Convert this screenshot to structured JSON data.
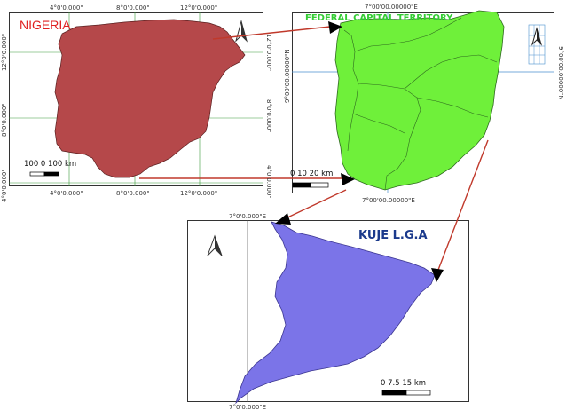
{
  "nigeria_panel": {
    "title": "NIGERIA",
    "top_labels": [
      "4°0'0.000\"",
      "8°0'0.000\"",
      "12°0'0.000\""
    ],
    "bottom_labels": [
      "4°0'0.000\"",
      "8°0'0.000\"",
      "12°0'0.000\""
    ],
    "left_labels": [
      "12°0'0.000\"",
      "8°0'0.000\"",
      "4°0'0.000\""
    ],
    "right_labels": [
      "12°0'0.000\"",
      "8°0'0.000\"",
      "4°0'0.000\""
    ],
    "scale_label": "100  0   100 km",
    "fill_color": "#b5484a"
  },
  "fct_panel": {
    "title": "FEDERAL CAPITAL TERRITORY",
    "top_label": "7°00'00.00000\"E",
    "bottom_label": "7°00'00.00000\"E",
    "left_label": "9°00'00.00000\"N",
    "right_label": "9°00'00.00000\"N",
    "scale_label": "0    10   20 km",
    "fill_color": "#6ff03a"
  },
  "kuje_panel": {
    "title": "KUJE L.G.A",
    "top_label": "7°0'0.000\"E",
    "bottom_label": "7°0'0.000\"E",
    "scale_label": "0      7.5     15 km",
    "fill_color": "#7b74e8"
  },
  "colors": {
    "arrow": "#c0392b",
    "grid": "#3a9a3a",
    "grid_fct": "#4a8fcf"
  }
}
